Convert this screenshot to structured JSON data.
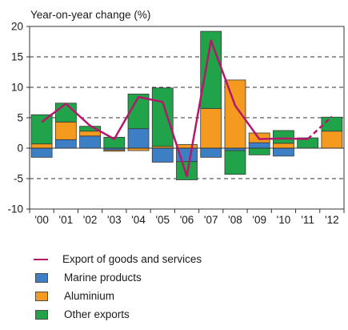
{
  "chart_data": {
    "type": "bar",
    "ylabel": "Year-on-year change (%)",
    "ylim": [
      -10,
      20
    ],
    "yticks": [
      -10,
      -5,
      0,
      5,
      10,
      15,
      20
    ],
    "categories": [
      "'00",
      "'01",
      "'02",
      "'03",
      "'04",
      "'05",
      "'06",
      "'07",
      "'08",
      "'09",
      "'10",
      "'11",
      "'12"
    ],
    "series": [
      {
        "name": "Marine products",
        "color": "#3c7fc4",
        "values": [
          -1.5,
          1.4,
          2.0,
          -0.3,
          3.2,
          -2.3,
          -2.2,
          -1.5,
          -0.4,
          0.9,
          -1.3,
          0.0,
          0.0
        ]
      },
      {
        "name": "Aluminium",
        "color": "#f39a1f",
        "values": [
          0.7,
          2.9,
          0.8,
          -0.2,
          -0.4,
          0.3,
          0.6,
          6.5,
          11.2,
          1.6,
          0.8,
          0.0,
          2.8
        ]
      },
      {
        "name": "Other exports",
        "color": "#21a34a",
        "values": [
          4.8,
          3.1,
          0.8,
          1.8,
          5.7,
          9.6,
          -3.0,
          12.7,
          -3.9,
          -1.1,
          2.1,
          1.7,
          2.3
        ]
      }
    ],
    "line": {
      "name": "Export of goods and services",
      "color": "#b5186a",
      "values": [
        4.3,
        7.3,
        3.7,
        1.5,
        8.4,
        7.6,
        -4.6,
        17.7,
        7.0,
        1.5,
        1.6,
        1.5,
        5.2
      ],
      "dashed_from_index": 11
    },
    "grid": "dashed horizontal",
    "legend": "below"
  },
  "legend": {
    "line_label": "Export of goods and services",
    "marine_label": "Marine products",
    "aluminium_label": "Aluminium",
    "other_label": "Other exports"
  }
}
